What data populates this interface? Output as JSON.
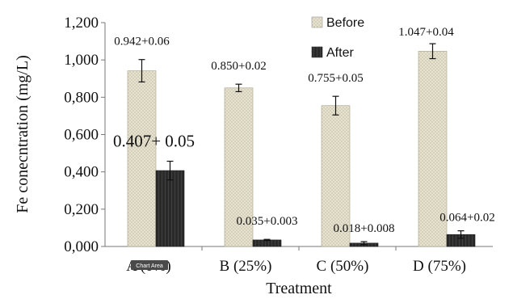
{
  "chart_data": {
    "type": "bar",
    "categories": [
      "A (0%)",
      "B (25%)",
      "C (50%)",
      "D (75%)"
    ],
    "series": [
      {
        "name": "Before",
        "values": [
          0.942,
          0.85,
          0.755,
          1.047
        ],
        "errors": [
          0.06,
          0.02,
          0.05,
          0.04
        ],
        "labels": [
          "0.942+0.06",
          "0.850+0.02",
          "0.755+0.05",
          "1.047+0.04"
        ],
        "color": "#e3dfcc"
      },
      {
        "name": "After",
        "values": [
          0.407,
          0.035,
          0.018,
          0.064
        ],
        "errors": [
          0.05,
          0.003,
          0.008,
          0.02
        ],
        "labels": [
          "0.407+ 0.05",
          "0.035+0.003",
          "0.018+0.008",
          "0.064+0.02"
        ],
        "color": "#2b2b2b"
      }
    ],
    "xlabel": "Treatment",
    "ylabel": "Fe conecntration (mg/L)",
    "ylim": [
      0,
      1.2
    ],
    "yticks": [
      "0,000",
      "0,200",
      "0,400",
      "0,600",
      "0,800",
      "1,000",
      "1,200"
    ],
    "legend_position": "top-right",
    "grid": false,
    "tooltip": "Chart Area"
  }
}
